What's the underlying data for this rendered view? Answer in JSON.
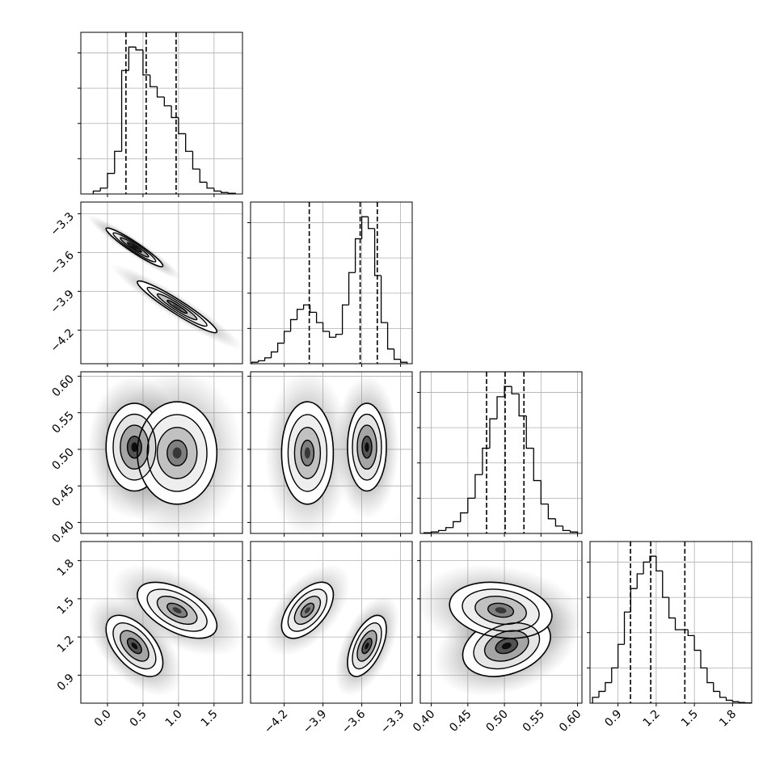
{
  "chart_data": {
    "type": "corner",
    "params": [
      {
        "range": [
          -0.375,
          1.9
        ],
        "ticks": [
          {
            "value": 0,
            "label": "0.0"
          },
          0.5,
          {
            "value": 1,
            "label": "1.0"
          },
          1.5
        ],
        "quantiles": [
          0.26,
          0.545,
          0.966
        ],
        "bins": [
          -0.2,
          -0.1,
          0,
          0.1,
          0.2,
          0.3,
          0.4,
          0.5,
          0.6,
          0.7,
          0.8,
          0.9,
          1.0,
          1.1,
          1.2,
          1.3,
          1.4,
          1.5,
          1.6,
          1.7,
          1.8
        ],
        "counts": [
          2,
          4,
          14,
          29,
          84,
          100,
          98,
          81,
          73,
          66,
          60,
          52,
          41,
          29,
          17,
          8,
          4,
          2,
          1,
          0.5
        ]
      },
      {
        "range": [
          -4.46,
          -3.21
        ],
        "ticks": [
          {
            "value": -4.2,
            "label": "−4.2"
          },
          {
            "value": -3.9,
            "label": "−3.9"
          },
          {
            "value": -3.6,
            "label": "−3.6"
          },
          {
            "value": -3.3,
            "label": "−3.3"
          }
        ],
        "quantiles": [
          -4.006,
          -3.6125,
          -3.48
        ],
        "bins": [
          -4.45,
          -4.4,
          -4.35,
          -4.3,
          -4.25,
          -4.2,
          -4.15,
          -4.1,
          -4.05,
          -4.0,
          -3.95,
          -3.9,
          -3.85,
          -3.8,
          -3.75,
          -3.7,
          -3.65,
          -3.6,
          -3.55,
          -3.5,
          -3.45,
          -3.4,
          -3.35,
          -3.3,
          -3.25
        ],
        "counts": [
          1,
          2,
          4,
          8,
          14,
          22,
          30,
          37,
          40,
          35,
          28,
          22,
          18,
          20,
          40,
          62,
          85,
          100,
          92,
          60,
          28,
          10,
          3,
          1
        ]
      },
      {
        "range": [
          0.385,
          0.606
        ],
        "ticks": [
          {
            "value": 0.4,
            "label": "0.40"
          },
          0.45,
          {
            "value": 0.5,
            "label": "0.50"
          },
          0.55,
          {
            "value": 0.6,
            "label": "0.60"
          }
        ],
        "quantiles": [
          0.4756,
          0.501,
          0.5267
        ],
        "bins": [
          0.39,
          0.4,
          0.41,
          0.42,
          0.43,
          0.44,
          0.45,
          0.46,
          0.47,
          0.48,
          0.49,
          0.5,
          0.51,
          0.52,
          0.53,
          0.54,
          0.55,
          0.56,
          0.57,
          0.58,
          0.59,
          0.6
        ],
        "counts": [
          0.5,
          1,
          2,
          4,
          8,
          14,
          24,
          40,
          58,
          78,
          93,
          100,
          95,
          80,
          58,
          36,
          20,
          10,
          5,
          2,
          1
        ]
      },
      {
        "range": [
          0.68,
          1.95
        ],
        "ticks": [
          0.9,
          1.2,
          1.5,
          1.8
        ],
        "quantiles": [
          0.998,
          1.157,
          1.425
        ],
        "bins": [
          0.7,
          0.75,
          0.8,
          0.85,
          0.9,
          0.95,
          1.0,
          1.05,
          1.1,
          1.15,
          1.2,
          1.25,
          1.3,
          1.35,
          1.4,
          1.45,
          1.5,
          1.55,
          1.6,
          1.65,
          1.7,
          1.75,
          1.8,
          1.85,
          1.9,
          1.95
        ],
        "counts": [
          4,
          8,
          14,
          24,
          40,
          62,
          78,
          88,
          96,
          100,
          90,
          72,
          58,
          50,
          50,
          46,
          36,
          24,
          14,
          8,
          4,
          2,
          1,
          0.5,
          0.2
        ]
      }
    ],
    "hist_ylim": [
      0,
      110
    ],
    "hist_yticks": [
      24,
      48,
      72,
      96
    ],
    "grid": true,
    "components": [
      {
        "weight": 0.6,
        "mean": [
          0.38,
          -3.56,
          0.503,
          1.13
        ],
        "sd": [
          0.2,
          0.075,
          0.03,
          0.12
        ],
        "corr": [
          -0.95,
          0,
          -0.55,
          0,
          0.55,
          0.3
        ]
      },
      {
        "weight": 0.4,
        "mean": [
          0.98,
          -4.02,
          0.495,
          1.41
        ],
        "sd": [
          0.28,
          0.1,
          0.035,
          0.11
        ],
        "corr": [
          -0.95,
          0,
          -0.55,
          0,
          0.55,
          -0.2
        ]
      }
    ]
  }
}
